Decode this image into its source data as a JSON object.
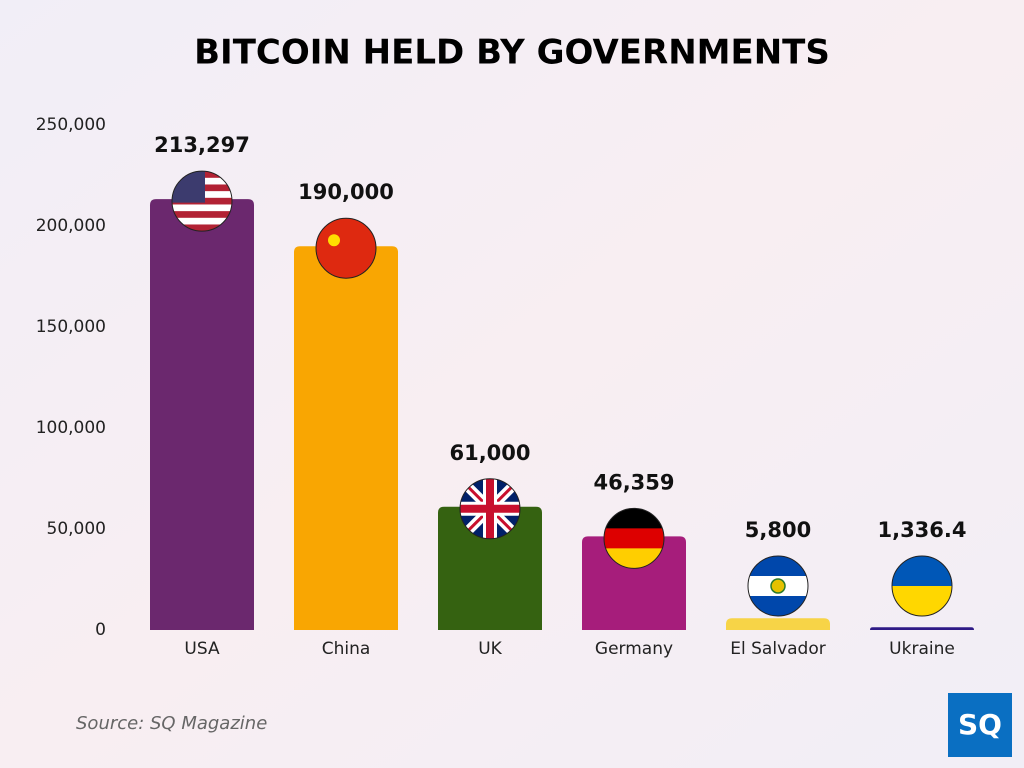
{
  "chart_data": {
    "type": "bar",
    "title": "BITCOIN HELD BY GOVERNMENTS",
    "categories": [
      "USA",
      "China",
      "UK",
      "Germany",
      "El Salvador",
      "Ukraine"
    ],
    "values": [
      213297,
      190000,
      61000,
      46359,
      5800,
      1336.4
    ],
    "value_labels": [
      "213,297",
      "190,000",
      "61,000",
      "46,359",
      "5,800",
      "1,336.4"
    ],
    "colors": [
      "#6b286e",
      "#f9a602",
      "#356211",
      "#a61d7b",
      "#f7d447",
      "#2e1a86"
    ],
    "ylim": [
      0,
      250000
    ],
    "yticks": [
      0,
      {
        "value": 50000,
        "label": "50,000"
      },
      {
        "value": 100000,
        "label": "100,000"
      },
      {
        "value": 150000,
        "label": "150,000"
      },
      {
        "value": 200000,
        "label": "200,000"
      },
      {
        "value": 250000,
        "label": "250,000"
      }
    ],
    "grid": false
  },
  "source": "Source: SQ Magazine",
  "logo": "SQ"
}
